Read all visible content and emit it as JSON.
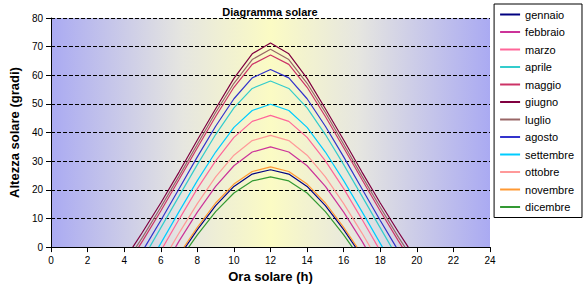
{
  "chart_data": {
    "type": "line",
    "title": "Diagramma solare",
    "x_label": "Ora solare (h)",
    "y_label": "Altezza solare (gradi)",
    "xlim": [
      0,
      24
    ],
    "xticks": [
      0,
      2,
      4,
      6,
      8,
      10,
      12,
      14,
      16,
      18,
      20,
      22,
      24
    ],
    "ylim": [
      0,
      80
    ],
    "yticks": [
      0,
      10,
      20,
      30,
      40,
      50,
      60,
      70,
      80
    ],
    "grid": true,
    "legend": "right",
    "series": [
      {
        "name": "gennaio",
        "color": "#000080",
        "x": [
          7.35,
          8,
          9,
          10,
          11,
          12,
          13,
          14,
          15,
          16,
          16.65
        ],
        "values": [
          0,
          6.1,
          14.5,
          21.2,
          25.5,
          27.0,
          25.5,
          21.2,
          14.5,
          6.1,
          0
        ]
      },
      {
        "name": "febbraio",
        "color": "#cc3399",
        "x": [
          6.81,
          7,
          8,
          9,
          10,
          11,
          12,
          13,
          14,
          15,
          16,
          17,
          17.19
        ],
        "values": [
          0,
          2.1,
          12.2,
          21.2,
          28.4,
          33.2,
          35.0,
          33.2,
          28.4,
          21.2,
          12.2,
          2.1,
          0
        ]
      },
      {
        "name": "marzo",
        "color": "#ff6699",
        "x": [
          6.12,
          7,
          8,
          9,
          10,
          11,
          12,
          13,
          14,
          15,
          16,
          17,
          17.88
        ],
        "values": [
          0,
          9.7,
          20.4,
          30.1,
          38.3,
          43.9,
          46.0,
          43.9,
          38.3,
          30.1,
          20.4,
          9.7,
          0
        ]
      },
      {
        "name": "aprile",
        "color": "#33cccc",
        "x": [
          5.39,
          6,
          7,
          8,
          9,
          10,
          11,
          12,
          13,
          14,
          15,
          16,
          17,
          18,
          18.61
        ],
        "values": [
          0,
          6.7,
          17.8,
          28.8,
          39.3,
          48.6,
          55.4,
          58.0,
          55.4,
          48.6,
          39.3,
          28.8,
          17.8,
          6.7,
          0
        ]
      },
      {
        "name": "maggio",
        "color": "#cc3366",
        "x": [
          4.79,
          5,
          6,
          7,
          8,
          9,
          10,
          11,
          12,
          13,
          14,
          15,
          16,
          17,
          18,
          19,
          19.21
        ],
        "values": [
          0,
          2.1,
          12.6,
          23.6,
          34.7,
          45.6,
          55.8,
          63.8,
          67.1,
          63.8,
          55.8,
          45.6,
          34.7,
          23.6,
          12.6,
          2.1,
          0
        ]
      },
      {
        "name": "giugno",
        "color": "#800040",
        "x": [
          4.47,
          5,
          6,
          7,
          8,
          9,
          10,
          11,
          12,
          13,
          14,
          15,
          16,
          17,
          18,
          19,
          19.53
        ],
        "values": [
          0,
          5.2,
          15.4,
          26.2,
          37.4,
          48.3,
          58.9,
          67.5,
          71.3,
          67.5,
          58.9,
          48.3,
          37.4,
          26.2,
          15.4,
          5.2,
          0
        ]
      },
      {
        "name": "luglio",
        "color": "#996666",
        "x": [
          4.65,
          5,
          6,
          7,
          8,
          9,
          10,
          11,
          12,
          13,
          14,
          15,
          16,
          17,
          18,
          19,
          19.35
        ],
        "values": [
          0,
          3.4,
          13.9,
          24.8,
          35.9,
          47.0,
          57.2,
          65.5,
          69.1,
          65.5,
          57.2,
          47.0,
          35.9,
          24.8,
          13.9,
          3.4,
          0
        ]
      },
      {
        "name": "agosto",
        "color": "#3333cc",
        "x": [
          5.13,
          6,
          7,
          8,
          9,
          10,
          11,
          12,
          13,
          14,
          15,
          16,
          17,
          18,
          18.87
        ],
        "values": [
          0,
          9.3,
          20.4,
          31.5,
          42.2,
          51.8,
          59.1,
          62.0,
          59.1,
          51.8,
          42.2,
          31.5,
          20.4,
          9.3,
          0
        ]
      },
      {
        "name": "settembre",
        "color": "#00ccff",
        "x": [
          5.88,
          6,
          7,
          8,
          9,
          10,
          11,
          12,
          13,
          14,
          15,
          16,
          17,
          18,
          18.12
        ],
        "values": [
          0,
          1.3,
          12.4,
          23.2,
          33.2,
          41.8,
          47.7,
          49.9,
          47.7,
          41.8,
          33.2,
          23.2,
          12.4,
          1.3,
          0
        ]
      },
      {
        "name": "ottobre",
        "color": "#ff9999",
        "x": [
          6.55,
          7,
          8,
          9,
          10,
          11,
          12,
          13,
          14,
          15,
          16,
          17,
          17.45
        ],
        "values": [
          0,
          4.9,
          15.2,
          24.5,
          32.1,
          37.2,
          39.0,
          37.2,
          32.1,
          24.5,
          15.2,
          4.9,
          0
        ]
      },
      {
        "name": "novembre",
        "color": "#ff9933",
        "x": [
          7.27,
          8,
          9,
          10,
          11,
          12,
          13,
          14,
          15,
          16,
          16.73
        ],
        "values": [
          0,
          6.9,
          15.4,
          22.0,
          26.4,
          28.0,
          26.4,
          22.0,
          15.4,
          6.9,
          0
        ]
      },
      {
        "name": "dicembre",
        "color": "#339933",
        "x": [
          7.53,
          8,
          9,
          10,
          11,
          12,
          13,
          14,
          15,
          16,
          16.47
        ],
        "values": [
          0,
          4.3,
          12.4,
          18.9,
          23.1,
          24.5,
          23.1,
          18.9,
          12.4,
          4.3,
          0
        ]
      }
    ]
  }
}
